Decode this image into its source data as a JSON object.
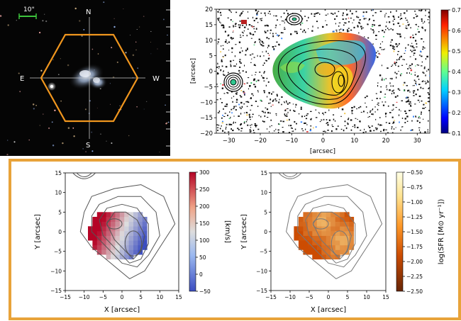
{
  "sky_image": {
    "scale_label": "10\"",
    "compass": {
      "north": "N",
      "south": "S",
      "east": "E",
      "west": "W"
    },
    "hexagon_color": "#f0961e"
  },
  "top_map": {
    "xlabel": "[arcsec]",
    "ylabel": "[arcsec]",
    "xticks": [
      "−30",
      "−20",
      "−10",
      "0",
      "10",
      "20",
      "30"
    ],
    "yticks": [
      "20",
      "15",
      "10",
      "5",
      "0",
      "−5",
      "−10",
      "−15",
      "−20"
    ],
    "xlim": [
      -34,
      34
    ],
    "ylim": [
      -20,
      20
    ],
    "colorbar_ticks": [
      "0.7",
      "0.6",
      "0.5",
      "0.4",
      "0.3",
      "0.2",
      "0.1"
    ],
    "colorbar_range": [
      0.1,
      0.7
    ]
  },
  "velocity_map": {
    "xlabel": "X [arcsec]",
    "ylabel": "Y [arcsec]",
    "xticks": [
      "−15",
      "−10",
      "−5",
      "0",
      "5",
      "10",
      "15"
    ],
    "yticks": [
      "15",
      "10",
      "5",
      "0",
      "−5",
      "−10",
      "−15"
    ],
    "xlim": [
      -15,
      15
    ],
    "ylim": [
      -15,
      15
    ],
    "colorbar_label": "[km/s]",
    "colorbar_ticks": [
      "300",
      "250",
      "200",
      "150",
      "100",
      "50",
      "0",
      "−50"
    ],
    "colorbar_range": [
      -50,
      300
    ]
  },
  "sfr_map": {
    "xlabel": "X [arcsec]",
    "ylabel": "Y [arcsec]",
    "xticks": [
      "−15",
      "−10",
      "−5",
      "0",
      "5",
      "10",
      "15"
    ],
    "yticks": [
      "15",
      "10",
      "5",
      "0",
      "−5",
      "−10",
      "−15"
    ],
    "xlim": [
      -15,
      15
    ],
    "ylim": [
      -15,
      15
    ],
    "colorbar_label": "log(SFR [M⊙ yr⁻¹])",
    "colorbar_ticks": [
      "−0.50",
      "−0.75",
      "−1.00",
      "−1.25",
      "−1.50",
      "−1.75",
      "−2.00",
      "−2.25",
      "−2.50"
    ],
    "colorbar_range": [
      -2.5,
      -0.5
    ]
  },
  "frame_color": "#e8a33a"
}
